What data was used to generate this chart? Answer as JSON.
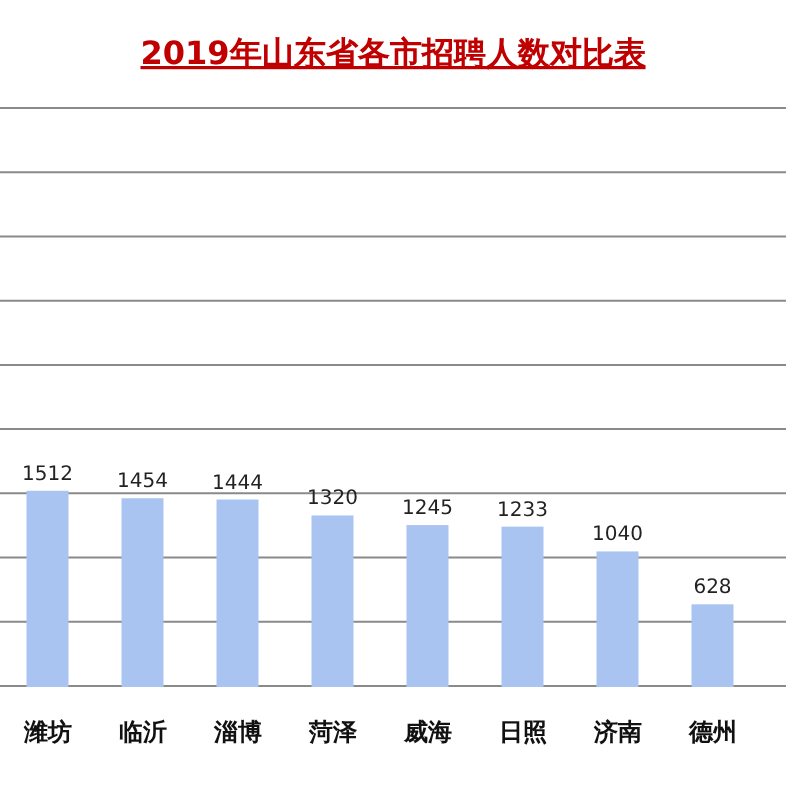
{
  "chart_data": {
    "type": "bar",
    "title": "2019年山东省各市招聘人数对比表",
    "categories": [
      "潍坊",
      "临沂",
      "淄博",
      "菏泽",
      "威海",
      "日照",
      "济南",
      "德州"
    ],
    "values": [
      1512,
      1454,
      1444,
      1320,
      1245,
      1233,
      1040,
      628
    ],
    "color": "#aac4f2",
    "ylim": [
      0,
      4500
    ],
    "yticks": [
      {
        "value": 0,
        "label": null
      },
      {
        "value": 500,
        "label": null
      },
      {
        "value": 1000,
        "label": null
      },
      {
        "value": 1500,
        "label": null
      },
      {
        "value": 2000,
        "label": null
      },
      {
        "value": 2500,
        "label": null
      },
      {
        "value": 3000,
        "label": null
      },
      {
        "value": 3500,
        "label": null
      },
      {
        "value": 4000,
        "label": null
      },
      {
        "value": 4500,
        "label": null
      }
    ],
    "grid": "y",
    "data_labels": true,
    "tick_labels": "x"
  }
}
